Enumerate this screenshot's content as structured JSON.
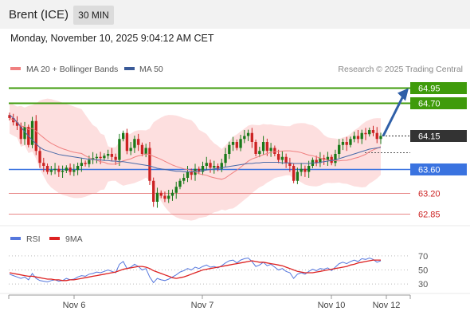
{
  "header": {
    "instrument": "Brent (ICE)",
    "timeframe": "30 MIN",
    "datetime": "Monday, November 10, 2025 9:04:12 AM CET"
  },
  "legend": {
    "bollinger": "MA 20 + Bollinger Bands",
    "ma50": "MA 50",
    "rsi": "RSI",
    "rsi_ma": "9MA"
  },
  "credit": "Research © 2025 Trading Central",
  "colors": {
    "bullish_candle": "#1a7a1a",
    "bearish_candle": "#cc2222",
    "resistance": "#3f9b0b",
    "support": "#3a73e0",
    "pivot": "#333333",
    "target_line": "#e88888",
    "bollinger_fill": "#fdd9d9",
    "ma20": "#f08080",
    "ma50": "#4a6aa8",
    "rsi": "#5577dd",
    "rsi_ma": "#dd2222",
    "arrow": "#2f5fa8"
  },
  "chart_data": [
    {
      "type": "candlestick",
      "title": "Brent (ICE) 30 MIN",
      "x_ticks": [
        "Nov 6",
        "Nov 7",
        "Nov 10",
        "Nov 12"
      ],
      "ylim": [
        62.65,
        65.05
      ],
      "levels": [
        {
          "value": 64.95,
          "label": "64.95",
          "kind": "resistance"
        },
        {
          "value": 64.7,
          "label": "64.70",
          "kind": "resistance"
        },
        {
          "value": 64.15,
          "label": "64.15",
          "kind": "pivot"
        },
        {
          "value": 63.6,
          "label": "63.60",
          "kind": "support"
        },
        {
          "value": 63.2,
          "label": "63.20",
          "kind": "target"
        },
        {
          "value": 62.85,
          "label": "62.85",
          "kind": "target"
        }
      ],
      "forecast_arrow": {
        "from": 64.15,
        "to": 64.95
      },
      "close": [
        64.45,
        64.38,
        64.32,
        64.1,
        64.3,
        64.0,
        64.4,
        63.9,
        63.7,
        63.65,
        63.55,
        63.58,
        63.6,
        63.55,
        63.57,
        63.62,
        63.55,
        63.58,
        63.65,
        63.7,
        63.68,
        63.75,
        63.78,
        63.8,
        63.78,
        63.82,
        63.85,
        63.8,
        63.75,
        64.1,
        64.2,
        63.9,
        63.95,
        64.1,
        64.0,
        63.85,
        63.95,
        63.4,
        63.05,
        63.2,
        63.15,
        63.1,
        63.15,
        63.2,
        63.3,
        63.4,
        63.45,
        63.55,
        63.5,
        63.6,
        63.55,
        63.65,
        63.7,
        63.62,
        63.65,
        63.6,
        63.7,
        63.85,
        64.0,
        64.05,
        63.95,
        64.1,
        64.15,
        64.2,
        64.05,
        63.85,
        63.9,
        64.05,
        63.9,
        63.95,
        63.85,
        63.75,
        63.8,
        63.7,
        63.65,
        63.4,
        63.55,
        63.6,
        63.55,
        63.65,
        63.75,
        63.7,
        63.78,
        63.75,
        63.8,
        63.7,
        63.85,
        64.0,
        64.05,
        64.0,
        64.1,
        64.15,
        64.1,
        64.2,
        64.18,
        64.25,
        64.2,
        64.1,
        64.15
      ],
      "ma50": [
        64.5,
        64.45,
        64.38,
        64.3,
        64.22,
        64.15,
        64.08,
        64.02,
        63.96,
        63.92,
        63.9,
        63.88,
        63.86,
        63.84,
        63.83,
        63.82,
        63.81,
        63.8,
        63.79,
        63.78,
        63.77,
        63.76,
        63.76,
        63.75,
        63.75,
        63.74,
        63.74,
        63.73,
        63.73,
        63.72,
        63.72,
        63.71,
        63.7,
        63.69,
        63.68,
        63.67,
        63.66,
        63.65,
        63.63,
        63.61,
        63.6,
        63.59,
        63.58,
        63.57,
        63.56,
        63.56,
        63.55,
        63.55,
        63.55,
        63.56,
        63.56,
        63.57,
        63.58,
        63.59,
        63.6,
        63.61,
        63.62,
        63.63,
        63.64,
        63.65,
        63.66,
        63.67,
        63.68,
        63.69,
        63.69,
        63.7,
        63.7,
        63.71,
        63.71,
        63.71,
        63.71,
        63.71,
        63.7,
        63.7,
        63.7,
        63.69,
        63.69,
        63.69,
        63.69,
        63.69,
        63.7,
        63.7,
        63.71,
        63.72,
        63.73,
        63.74,
        63.75,
        63.77,
        63.79,
        63.81,
        63.83,
        63.85,
        63.87,
        63.89,
        63.91,
        63.93,
        63.94,
        63.95,
        63.96
      ]
    },
    {
      "type": "line",
      "title": "RSI",
      "y_ticks": [
        70,
        50,
        30
      ],
      "ylim": [
        20,
        80
      ],
      "series": [
        {
          "name": "RSI",
          "values": [
            44,
            42,
            40,
            38,
            40,
            36,
            45,
            38,
            35,
            34,
            33,
            35,
            36,
            34,
            35,
            38,
            36,
            37,
            40,
            42,
            41,
            44,
            45,
            47,
            46,
            48,
            50,
            48,
            46,
            58,
            62,
            52,
            54,
            58,
            55,
            50,
            52,
            40,
            32,
            38,
            36,
            35,
            37,
            40,
            43,
            47,
            49,
            52,
            50,
            54,
            52,
            55,
            57,
            54,
            55,
            53,
            56,
            60,
            63,
            64,
            60,
            64,
            66,
            67,
            62,
            55,
            57,
            61,
            56,
            58,
            54,
            50,
            52,
            48,
            46,
            38,
            44,
            46,
            44,
            48,
            51,
            49,
            52,
            51,
            53,
            49,
            54,
            59,
            61,
            59,
            62,
            64,
            62,
            66,
            65,
            67,
            65,
            61,
            63
          ]
        },
        {
          "name": "9MA",
          "values": [
            46,
            45,
            44,
            43,
            42,
            41,
            41,
            40,
            39,
            38,
            37,
            37,
            36,
            36,
            35,
            35,
            36,
            36,
            37,
            38,
            39,
            40,
            41,
            42,
            43,
            44,
            45,
            46,
            47,
            49,
            51,
            52,
            53,
            54,
            55,
            55,
            54,
            52,
            49,
            47,
            45,
            43,
            41,
            39,
            38,
            39,
            40,
            42,
            44,
            46,
            48,
            50,
            51,
            52,
            53,
            54,
            55,
            56,
            57,
            58,
            59,
            60,
            61,
            62,
            63,
            62,
            61,
            61,
            60,
            59,
            58,
            57,
            56,
            54,
            52,
            50,
            48,
            47,
            46,
            46,
            46,
            47,
            48,
            49,
            50,
            51,
            52,
            53,
            54,
            55,
            57,
            58,
            60,
            61,
            62,
            63,
            64,
            64,
            64
          ]
        }
      ]
    }
  ]
}
